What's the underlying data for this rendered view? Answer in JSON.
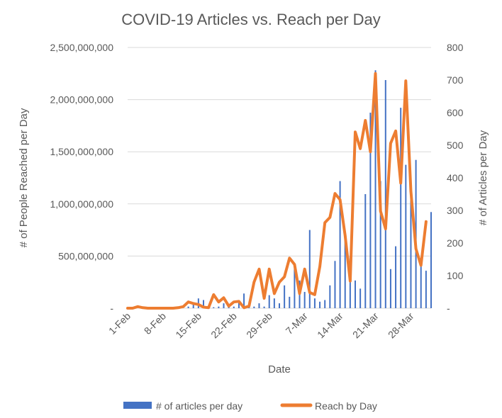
{
  "chart_data": {
    "type": "bar+line",
    "title": "COVID-19 Articles vs. Reach per Day",
    "xlabel": "Date",
    "ylabel_left": "# of People Reached per Day",
    "ylabel_right": "# of Articles per Day",
    "left_axis": {
      "min": 0,
      "max": 2500000000,
      "step": 500000000,
      "tick_labels": [
        "-",
        "500,000,000",
        "1,000,000,000",
        "1,500,000,000",
        "2,000,000,000",
        "2,500,000,000"
      ]
    },
    "right_axis": {
      "min": 0,
      "max": 800,
      "step": 100,
      "tick_labels": [
        "-",
        "100",
        "200",
        "300",
        "400",
        "500",
        "600",
        "700",
        "800"
      ]
    },
    "x_tick_labels": [
      "1-Feb",
      "8-Feb",
      "15-Feb",
      "22-Feb",
      "29-Feb",
      "7-Mar",
      "14-Mar",
      "21-Mar",
      "28-Mar"
    ],
    "x_tick_day_indices": [
      0,
      7,
      14,
      21,
      28,
      35,
      42,
      49,
      56
    ],
    "grid": true,
    "legend_position": "bottom",
    "colors": {
      "bars": "#4472C4",
      "line": "#ED7D31",
      "grid": "#D9D9D9",
      "text": "#595959"
    },
    "series": [
      {
        "name": "# of articles per day",
        "type": "bar",
        "axis": "right",
        "values": [
          0,
          0,
          0,
          0,
          0,
          0,
          0,
          0,
          0,
          0,
          0,
          0,
          5,
          15,
          30,
          25,
          5,
          3,
          5,
          15,
          10,
          5,
          20,
          45,
          10,
          5,
          15,
          5,
          40,
          30,
          15,
          70,
          35,
          135,
          85,
          50,
          240,
          30,
          20,
          25,
          70,
          145,
          390,
          225,
          160,
          85,
          60,
          350,
          600,
          730,
          390,
          700,
          120,
          190,
          615,
          440,
          400,
          455,
          140,
          115,
          295
        ],
        "start": "1-Feb"
      },
      {
        "name": "Reach by Day",
        "type": "line",
        "axis": "left",
        "values": [
          0,
          0,
          15000000,
          5000000,
          0,
          0,
          0,
          0,
          0,
          0,
          5000000,
          15000000,
          60000000,
          45000000,
          35000000,
          10000000,
          5000000,
          130000000,
          60000000,
          100000000,
          20000000,
          60000000,
          65000000,
          5000000,
          20000000,
          250000000,
          375000000,
          95000000,
          375000000,
          140000000,
          250000000,
          300000000,
          480000000,
          420000000,
          140000000,
          375000000,
          150000000,
          130000000,
          400000000,
          820000000,
          870000000,
          1100000000,
          1040000000,
          700000000,
          260000000,
          1690000000,
          1530000000,
          1800000000,
          1500000000,
          2250000000,
          930000000,
          760000000,
          1580000000,
          1700000000,
          1200000000,
          2180000000,
          1120000000,
          570000000,
          410000000,
          830000000
        ],
        "start": "1-Feb"
      }
    ]
  }
}
